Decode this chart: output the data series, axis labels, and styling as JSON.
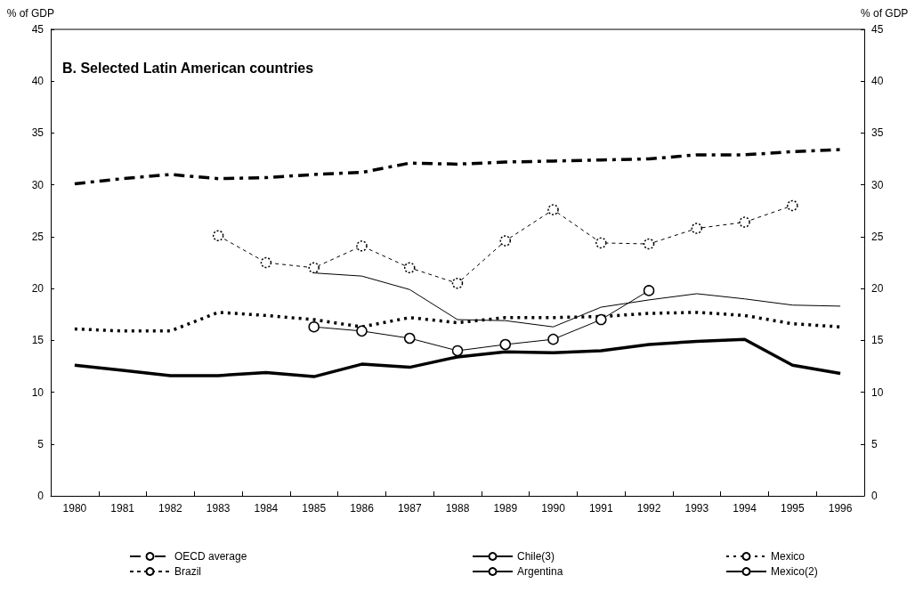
{
  "chart_data": {
    "type": "line",
    "title": "B. Selected Latin American countries",
    "ylabel": "% of GDP",
    "y2label": "% of GDP",
    "categories": [
      "1980",
      "1981",
      "1982",
      "1983",
      "1984",
      "1985",
      "1986",
      "1987",
      "1988",
      "1989",
      "1990",
      "1991",
      "1992",
      "1993",
      "1994",
      "1995",
      "1996"
    ],
    "ylim": [
      0,
      45
    ],
    "yticks": [
      0,
      5,
      10,
      15,
      20,
      25,
      30,
      35,
      40,
      45
    ],
    "y2lim": [
      0,
      45
    ],
    "y2ticks": [
      0,
      5,
      10,
      15,
      20,
      25,
      30,
      35,
      40,
      45
    ],
    "grid": false,
    "legend": "bottom",
    "series": [
      {
        "name": "OECD average",
        "color": "#000000",
        "line_style": "dashed",
        "marker": "none",
        "values": [
          30.1,
          30.6,
          31.0,
          30.6,
          30.7,
          31.0,
          31.2,
          32.1,
          32.0,
          32.2,
          32.3,
          32.4,
          32.5,
          32.9,
          32.9,
          33.2,
          33.4
        ]
      },
      {
        "name": "Chile(3)",
        "color": "#000000",
        "line_style": "solid",
        "marker": "none",
        "values": [
          null,
          null,
          null,
          null,
          null,
          21.5,
          21.2,
          19.9,
          17.0,
          16.9,
          16.3,
          18.2,
          18.9,
          19.5,
          19.0,
          18.4,
          18.3
        ]
      },
      {
        "name": "Mexico",
        "color": "#000000",
        "line_style": "dotted",
        "marker": "none",
        "values": [
          16.1,
          15.9,
          15.9,
          17.7,
          17.4,
          17.0,
          16.3,
          17.2,
          16.7,
          17.2,
          17.2,
          17.3,
          17.6,
          17.7,
          17.4,
          16.6,
          16.3
        ]
      },
      {
        "name": "Brazil",
        "color": "#000000",
        "line_style": "dashed",
        "marker": "circle",
        "values": [
          null,
          null,
          null,
          25.1,
          22.5,
          22.0,
          24.1,
          22.0,
          20.5,
          24.6,
          27.6,
          24.4,
          24.3,
          25.8,
          26.4,
          28.0,
          null
        ]
      },
      {
        "name": "Argentina",
        "color": "#000000",
        "line_style": "solid",
        "marker": "circle",
        "values": [
          null,
          null,
          null,
          null,
          null,
          16.3,
          15.9,
          15.2,
          14.0,
          14.6,
          15.1,
          17.0,
          19.8,
          null,
          null,
          null,
          null
        ]
      },
      {
        "name": "Mexico(2)",
        "color": "#000000",
        "line_style": "solid",
        "marker": "none",
        "values": [
          12.6,
          12.1,
          11.6,
          11.6,
          11.9,
          11.5,
          12.7,
          12.4,
          13.4,
          13.9,
          13.8,
          14.0,
          14.6,
          14.9,
          15.1,
          12.6,
          11.8
        ]
      }
    ]
  }
}
